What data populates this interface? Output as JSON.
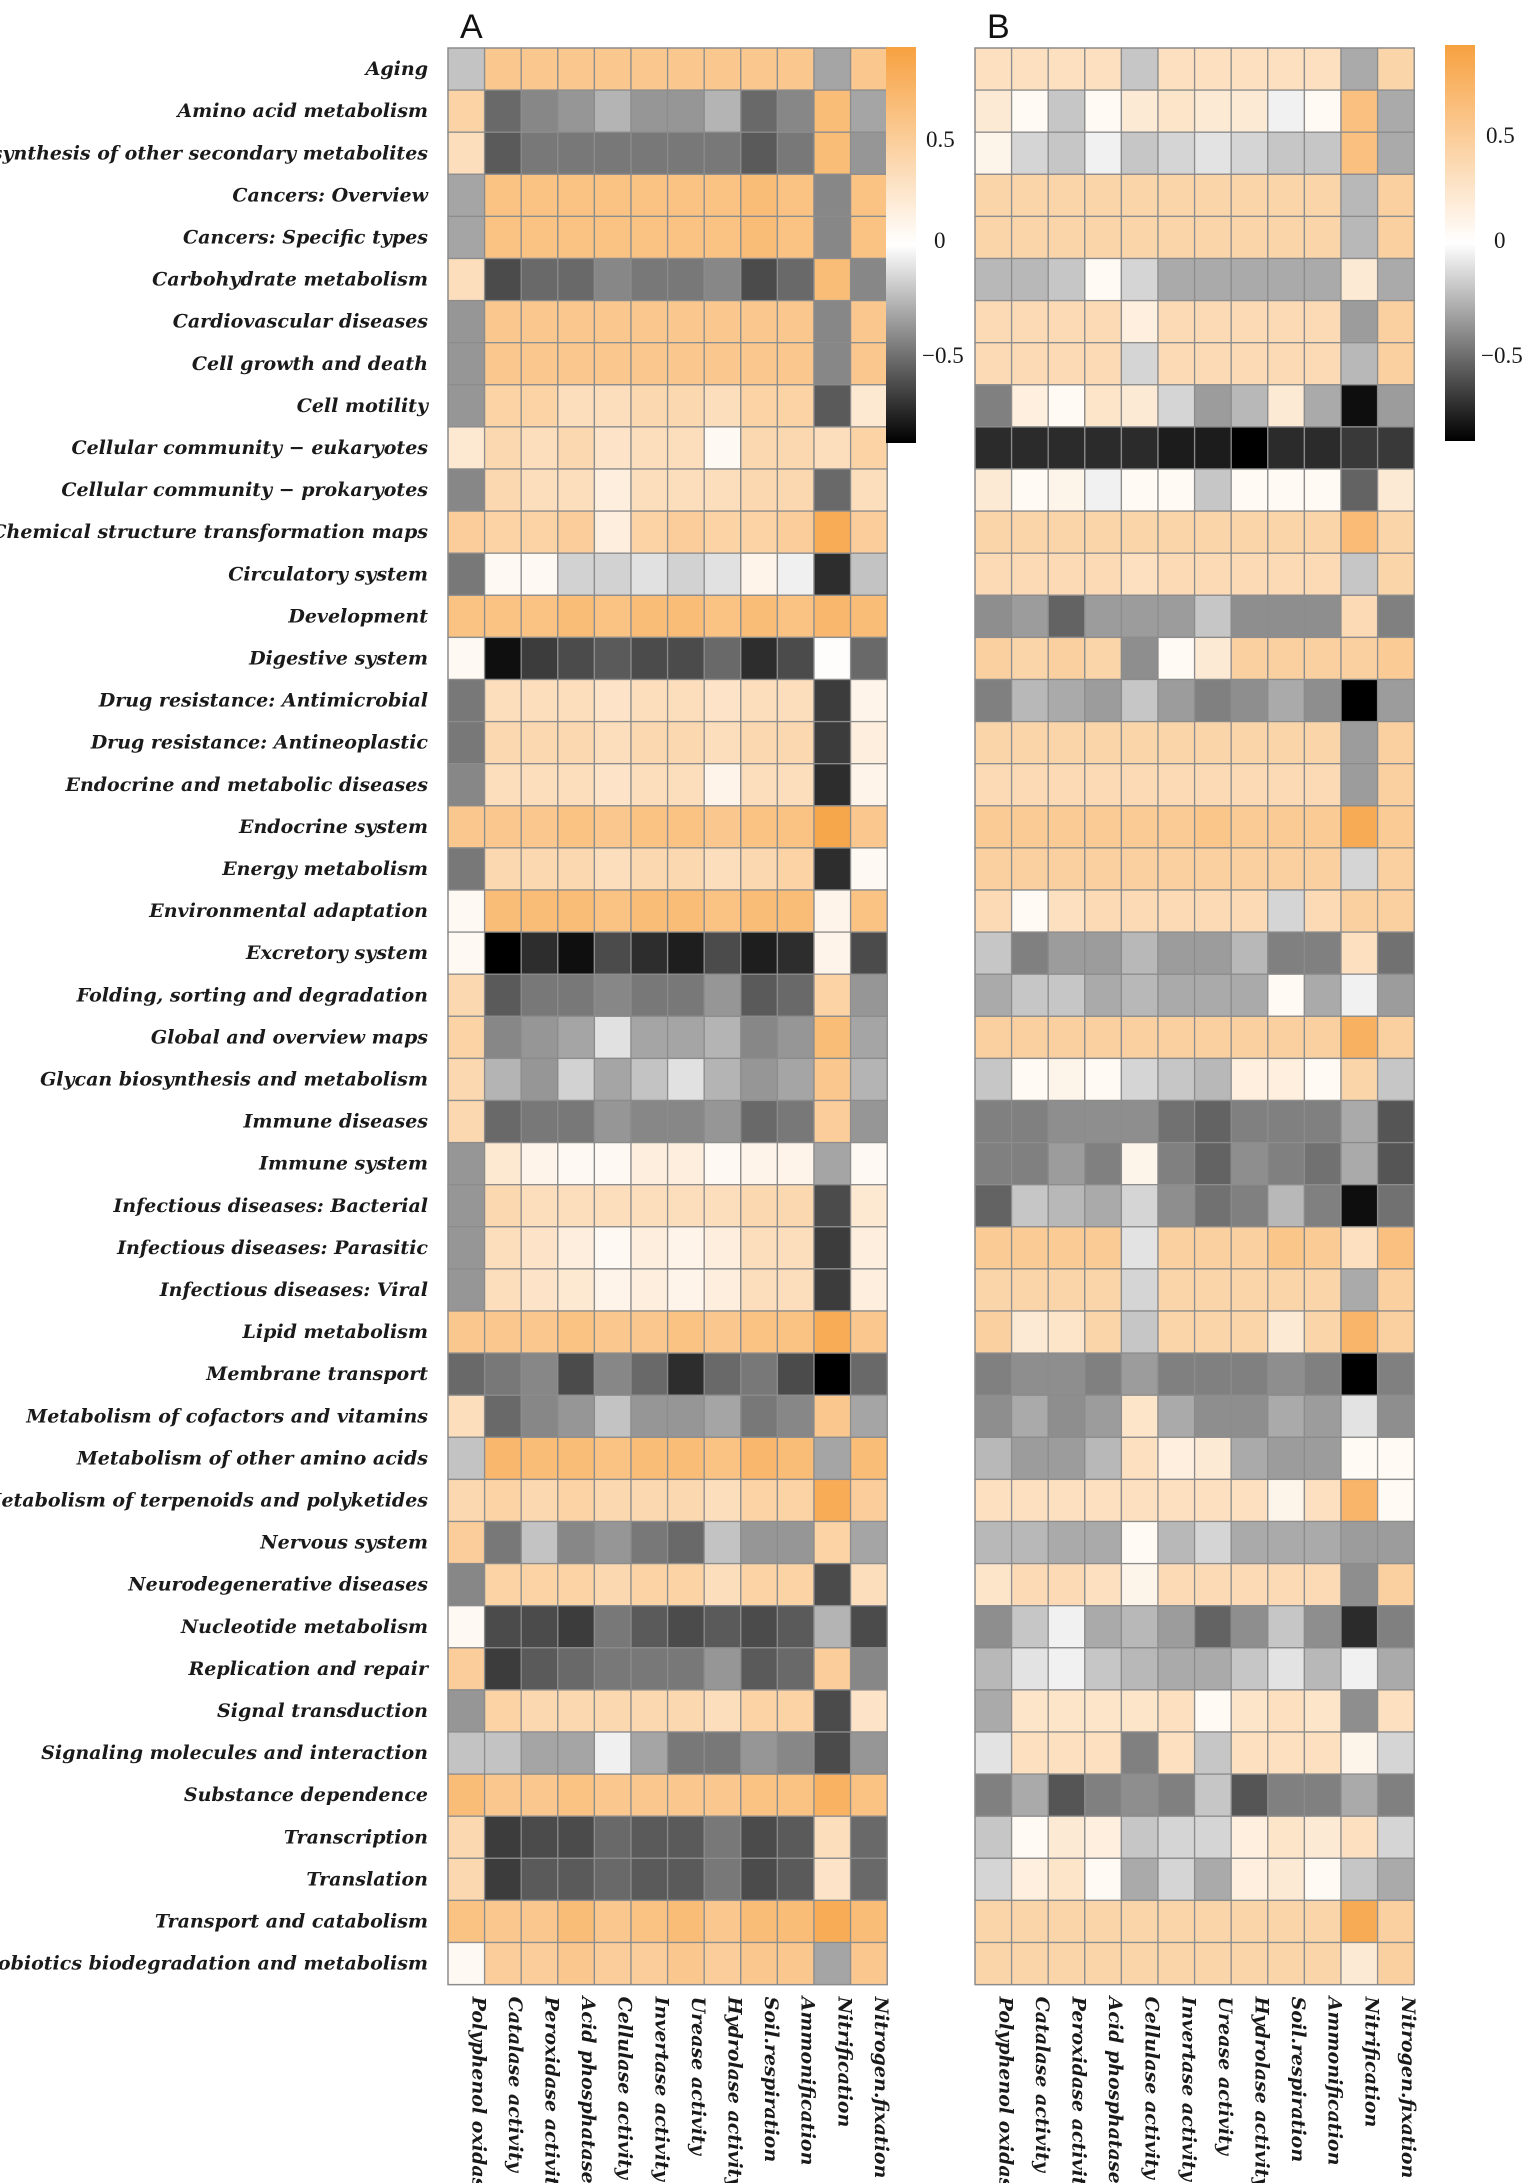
{
  "chart_data": {
    "type": "heatmap",
    "title": "",
    "panels": [
      "A",
      "B"
    ],
    "rows": [
      "Aging",
      "Amino acid metabolism",
      "Biosynthesis of other secondary metabolites",
      "Cancers: Overview",
      "Cancers: Specific types",
      "Carbohydrate metabolism",
      "Cardiovascular diseases",
      "Cell growth and death",
      "Cell motility",
      "Cellular community − eukaryotes",
      "Cellular community − prokaryotes",
      "Chemical structure transformation maps",
      "Circulatory system",
      "Development",
      "Digestive system",
      "Drug resistance: Antimicrobial",
      "Drug resistance: Antineoplastic",
      "Endocrine and metabolic diseases",
      "Endocrine system",
      "Energy metabolism",
      "Environmental adaptation",
      "Excretory system",
      "Folding, sorting and degradation",
      "Global and overview maps",
      "Glycan biosynthesis and metabolism",
      "Immune diseases",
      "Immune system",
      "Infectious diseases: Bacterial",
      "Infectious diseases: Parasitic",
      "Infectious diseases: Viral",
      "Lipid metabolism",
      "Membrane transport",
      "Metabolism of cofactors and vitamins",
      "Metabolism of other amino acids",
      "Metabolism of terpenoids and polyketides",
      "Nervous system",
      "Neurodegenerative diseases",
      "Nucleotide metabolism",
      "Replication and repair",
      "Signal transduction",
      "Signaling molecules and interaction",
      "Substance dependence",
      "Transcription",
      "Translation",
      "Transport and catabolism",
      "Xenobiotics biodegradation and metabolism"
    ],
    "columns_A": [
      "Polyphenol oxidase",
      "Catalase activity",
      "Peroxidase activity",
      "Acid phosphatase",
      "Cellulase activity",
      "Invertase activity",
      "Urease activity",
      "Hydrolase activity",
      "Soil.respiration",
      "Ammonification",
      "Nitrification",
      "Nitrogen.fixation"
    ],
    "columns_B": [
      "Polyphenol oxidas",
      "Catalase activity",
      "Peroxidase activity",
      "Acid phosphatase",
      "Cellulase activity",
      "Invertase activity",
      "Urease activity",
      "Hydrolase activity",
      "Soil.respiration",
      "Ammonification",
      "Nitrification",
      "Nitrogen.fixation"
    ],
    "colorbar_A": {
      "ticks": [
        0.5,
        0,
        -0.5
      ],
      "tick_labels": [
        "0.5",
        "0",
        "−0.5"
      ],
      "range": [
        -0.85,
        0.85
      ]
    },
    "colorbar_B": {
      "ticks": [
        0.5,
        0,
        -0.5
      ],
      "tick_labels": [
        "0.5",
        "0",
        "−0.5"
      ],
      "range": [
        -0.9,
        0.9
      ]
    },
    "colors": {
      "high": "#f7a140",
      "mid": "#ffffff",
      "low": "#000000"
    },
    "values_A": [
      [
        -0.2,
        0.5,
        0.5,
        0.5,
        0.5,
        0.5,
        0.5,
        0.5,
        0.5,
        0.5,
        -0.3,
        0.5
      ],
      [
        0.4,
        -0.5,
        -0.4,
        -0.35,
        -0.25,
        -0.35,
        -0.35,
        -0.25,
        -0.5,
        -0.4,
        0.6,
        -0.3
      ],
      [
        0.3,
        -0.55,
        -0.45,
        -0.45,
        -0.45,
        -0.45,
        -0.45,
        -0.45,
        -0.55,
        -0.45,
        0.6,
        -0.35
      ],
      [
        -0.3,
        0.55,
        0.55,
        0.55,
        0.55,
        0.55,
        0.55,
        0.55,
        0.6,
        0.55,
        -0.4,
        0.55
      ],
      [
        -0.3,
        0.55,
        0.55,
        0.55,
        0.55,
        0.55,
        0.55,
        0.55,
        0.6,
        0.55,
        -0.4,
        0.55
      ],
      [
        0.3,
        -0.6,
        -0.5,
        -0.5,
        -0.4,
        -0.45,
        -0.45,
        -0.4,
        -0.6,
        -0.5,
        0.6,
        -0.4
      ],
      [
        -0.35,
        0.5,
        0.5,
        0.5,
        0.5,
        0.5,
        0.5,
        0.5,
        0.5,
        0.5,
        -0.4,
        0.5
      ],
      [
        -0.35,
        0.5,
        0.5,
        0.5,
        0.5,
        0.5,
        0.5,
        0.5,
        0.5,
        0.5,
        -0.4,
        0.5
      ],
      [
        -0.35,
        0.4,
        0.4,
        0.3,
        0.3,
        0.35,
        0.35,
        0.3,
        0.4,
        0.4,
        -0.55,
        0.2
      ],
      [
        0.2,
        0.35,
        0.3,
        0.35,
        0.25,
        0.3,
        0.3,
        0.05,
        0.35,
        0.35,
        0.3,
        0.4
      ],
      [
        -0.4,
        0.35,
        0.3,
        0.3,
        0.15,
        0.3,
        0.3,
        0.3,
        0.35,
        0.35,
        -0.5,
        0.3
      ],
      [
        0.45,
        0.4,
        0.4,
        0.45,
        0.15,
        0.4,
        0.45,
        0.4,
        0.4,
        0.45,
        0.75,
        0.45
      ],
      [
        -0.45,
        0.05,
        0.05,
        -0.15,
        -0.15,
        -0.1,
        -0.15,
        -0.1,
        0.1,
        -0.05,
        -0.7,
        -0.2
      ],
      [
        0.55,
        0.55,
        0.55,
        0.6,
        0.55,
        0.6,
        0.6,
        0.55,
        0.6,
        0.55,
        0.65,
        0.6
      ],
      [
        0.05,
        -0.8,
        -0.65,
        -0.6,
        -0.55,
        -0.6,
        -0.6,
        -0.5,
        -0.7,
        -0.6,
        0.02,
        -0.5
      ],
      [
        -0.45,
        0.3,
        0.3,
        0.3,
        0.25,
        0.3,
        0.3,
        0.25,
        0.3,
        0.3,
        -0.65,
        0.1
      ],
      [
        -0.45,
        0.35,
        0.35,
        0.35,
        0.3,
        0.35,
        0.35,
        0.3,
        0.35,
        0.35,
        -0.65,
        0.15
      ],
      [
        -0.4,
        0.3,
        0.3,
        0.3,
        0.25,
        0.3,
        0.3,
        0.1,
        0.3,
        0.3,
        -0.7,
        0.1
      ],
      [
        0.5,
        0.5,
        0.5,
        0.55,
        0.5,
        0.55,
        0.55,
        0.5,
        0.55,
        0.55,
        0.8,
        0.5
      ],
      [
        -0.45,
        0.35,
        0.35,
        0.35,
        0.3,
        0.35,
        0.35,
        0.3,
        0.35,
        0.4,
        -0.7,
        0.05
      ],
      [
        0.05,
        0.6,
        0.6,
        0.6,
        0.55,
        0.6,
        0.6,
        0.55,
        0.6,
        0.6,
        0.1,
        0.55
      ],
      [
        0.05,
        -0.85,
        -0.7,
        -0.8,
        -0.6,
        -0.7,
        -0.75,
        -0.6,
        -0.75,
        -0.7,
        0.1,
        -0.6
      ],
      [
        0.35,
        -0.55,
        -0.45,
        -0.45,
        -0.4,
        -0.45,
        -0.45,
        -0.35,
        -0.55,
        -0.5,
        0.4,
        -0.35
      ],
      [
        0.4,
        -0.4,
        -0.35,
        -0.3,
        -0.1,
        -0.3,
        -0.3,
        -0.25,
        -0.4,
        -0.35,
        0.6,
        -0.3
      ],
      [
        0.35,
        -0.25,
        -0.35,
        -0.15,
        -0.3,
        -0.2,
        -0.1,
        -0.25,
        -0.35,
        -0.3,
        0.5,
        -0.25
      ],
      [
        0.35,
        -0.5,
        -0.45,
        -0.45,
        -0.35,
        -0.4,
        -0.4,
        -0.35,
        -0.5,
        -0.45,
        0.45,
        -0.35
      ],
      [
        -0.35,
        0.2,
        0.1,
        0.05,
        0.05,
        0.15,
        0.15,
        0.05,
        0.1,
        0.1,
        -0.3,
        0.05
      ],
      [
        -0.35,
        0.35,
        0.3,
        0.3,
        0.3,
        0.3,
        0.3,
        0.3,
        0.35,
        0.35,
        -0.6,
        0.2
      ],
      [
        -0.35,
        0.3,
        0.25,
        0.15,
        0.05,
        0.15,
        0.1,
        0.15,
        0.3,
        0.3,
        -0.65,
        0.15
      ],
      [
        -0.35,
        0.3,
        0.25,
        0.2,
        0.1,
        0.15,
        0.1,
        0.15,
        0.3,
        0.3,
        -0.65,
        0.15
      ],
      [
        0.5,
        0.5,
        0.5,
        0.55,
        0.5,
        0.5,
        0.55,
        0.5,
        0.55,
        0.55,
        0.75,
        0.5
      ],
      [
        -0.5,
        -0.45,
        -0.4,
        -0.6,
        -0.4,
        -0.5,
        -0.7,
        -0.5,
        -0.45,
        -0.6,
        -0.9,
        -0.5
      ],
      [
        0.3,
        -0.5,
        -0.4,
        -0.35,
        -0.2,
        -0.35,
        -0.35,
        -0.3,
        -0.45,
        -0.4,
        0.5,
        -0.3
      ],
      [
        -0.2,
        0.65,
        0.6,
        0.6,
        0.55,
        0.6,
        0.6,
        0.55,
        0.65,
        0.6,
        -0.3,
        0.6
      ],
      [
        0.35,
        0.4,
        0.35,
        0.4,
        0.35,
        0.35,
        0.35,
        0.3,
        0.4,
        0.4,
        0.75,
        0.45
      ],
      [
        0.45,
        -0.45,
        -0.2,
        -0.4,
        -0.35,
        -0.45,
        -0.5,
        -0.2,
        -0.35,
        -0.35,
        0.4,
        -0.3
      ],
      [
        -0.4,
        0.4,
        0.4,
        0.4,
        0.35,
        0.4,
        0.4,
        0.3,
        0.4,
        0.4,
        -0.6,
        0.3
      ],
      [
        0.05,
        -0.6,
        -0.6,
        -0.65,
        -0.45,
        -0.55,
        -0.6,
        -0.55,
        -0.6,
        -0.55,
        -0.25,
        -0.6
      ],
      [
        0.45,
        -0.65,
        -0.55,
        -0.5,
        -0.45,
        -0.45,
        -0.45,
        -0.35,
        -0.55,
        -0.5,
        0.45,
        -0.4
      ],
      [
        -0.35,
        0.4,
        0.35,
        0.35,
        0.35,
        0.35,
        0.35,
        0.3,
        0.4,
        0.4,
        -0.6,
        0.25
      ],
      [
        -0.2,
        -0.2,
        -0.3,
        -0.3,
        -0.05,
        -0.3,
        -0.45,
        -0.45,
        -0.35,
        -0.4,
        -0.6,
        -0.35
      ],
      [
        0.6,
        0.5,
        0.5,
        0.55,
        0.5,
        0.5,
        0.5,
        0.5,
        0.55,
        0.55,
        0.7,
        0.55
      ],
      [
        0.35,
        -0.65,
        -0.6,
        -0.6,
        -0.5,
        -0.55,
        -0.55,
        -0.45,
        -0.6,
        -0.55,
        0.3,
        -0.5
      ],
      [
        0.35,
        -0.65,
        -0.55,
        -0.55,
        -0.5,
        -0.55,
        -0.55,
        -0.45,
        -0.6,
        -0.55,
        0.25,
        -0.5
      ],
      [
        0.55,
        0.5,
        0.5,
        0.6,
        0.5,
        0.55,
        0.6,
        0.5,
        0.6,
        0.6,
        0.75,
        0.6
      ],
      [
        0.05,
        0.45,
        0.45,
        0.5,
        0.45,
        0.45,
        0.5,
        0.45,
        0.5,
        0.5,
        -0.3,
        0.5
      ]
    ],
    "values_B": [
      [
        0.3,
        0.3,
        0.3,
        0.3,
        -0.2,
        0.3,
        0.3,
        0.3,
        0.3,
        0.3,
        -0.3,
        0.4
      ],
      [
        0.2,
        0.05,
        -0.2,
        0.05,
        0.2,
        0.25,
        0.2,
        0.2,
        -0.05,
        0.05,
        0.6,
        -0.3
      ],
      [
        0.1,
        -0.15,
        -0.2,
        -0.05,
        -0.2,
        -0.15,
        -0.1,
        -0.15,
        -0.2,
        -0.2,
        0.6,
        -0.3
      ],
      [
        0.4,
        0.4,
        0.4,
        0.4,
        0.4,
        0.4,
        0.4,
        0.4,
        0.4,
        0.4,
        -0.25,
        0.45
      ],
      [
        0.4,
        0.4,
        0.4,
        0.4,
        0.4,
        0.4,
        0.4,
        0.4,
        0.4,
        0.4,
        -0.25,
        0.45
      ],
      [
        -0.25,
        -0.25,
        -0.2,
        0.05,
        -0.15,
        -0.3,
        -0.3,
        -0.3,
        -0.3,
        -0.3,
        0.2,
        -0.3
      ],
      [
        0.35,
        0.35,
        0.35,
        0.35,
        0.15,
        0.35,
        0.35,
        0.35,
        0.35,
        0.35,
        -0.35,
        0.45
      ],
      [
        0.35,
        0.35,
        0.35,
        0.35,
        -0.15,
        0.35,
        0.35,
        0.35,
        0.35,
        0.35,
        -0.25,
        0.45
      ],
      [
        -0.45,
        0.15,
        0.05,
        0.25,
        0.2,
        -0.15,
        -0.35,
        -0.25,
        0.2,
        -0.3,
        -0.85,
        -0.35
      ],
      [
        -0.75,
        -0.75,
        -0.75,
        -0.75,
        -0.75,
        -0.8,
        -0.8,
        -0.9,
        -0.75,
        -0.75,
        -0.7,
        -0.7
      ],
      [
        0.2,
        0.05,
        0.1,
        -0.05,
        0.05,
        0.05,
        -0.2,
        0.05,
        0.05,
        0.05,
        -0.55,
        0.2
      ],
      [
        0.4,
        0.4,
        0.4,
        0.4,
        0.4,
        0.4,
        0.4,
        0.4,
        0.4,
        0.4,
        0.65,
        0.4
      ],
      [
        0.35,
        0.35,
        0.35,
        0.35,
        0.3,
        0.35,
        0.35,
        0.35,
        0.35,
        0.35,
        -0.2,
        0.4
      ],
      [
        -0.4,
        -0.35,
        -0.55,
        -0.35,
        -0.35,
        -0.35,
        -0.2,
        -0.4,
        -0.4,
        -0.4,
        0.35,
        -0.45
      ],
      [
        0.45,
        0.4,
        0.45,
        0.4,
        -0.4,
        0.05,
        0.2,
        0.45,
        0.45,
        0.45,
        0.45,
        0.5
      ],
      [
        -0.45,
        -0.25,
        -0.3,
        -0.35,
        -0.2,
        -0.35,
        -0.45,
        -0.4,
        -0.3,
        -0.4,
        -0.9,
        -0.35
      ],
      [
        0.4,
        0.4,
        0.4,
        0.4,
        0.4,
        0.4,
        0.4,
        0.4,
        0.4,
        0.4,
        -0.35,
        0.45
      ],
      [
        0.35,
        0.35,
        0.35,
        0.35,
        0.35,
        0.35,
        0.35,
        0.35,
        0.35,
        0.35,
        -0.35,
        0.45
      ],
      [
        0.5,
        0.5,
        0.5,
        0.5,
        0.5,
        0.5,
        0.55,
        0.5,
        0.5,
        0.5,
        0.8,
        0.5
      ],
      [
        0.45,
        0.45,
        0.45,
        0.45,
        0.45,
        0.45,
        0.45,
        0.45,
        0.45,
        0.45,
        -0.15,
        0.45
      ],
      [
        0.35,
        0.05,
        0.3,
        0.35,
        0.35,
        0.35,
        0.35,
        0.35,
        -0.15,
        0.35,
        0.45,
        0.45
      ],
      [
        -0.2,
        -0.45,
        -0.35,
        -0.35,
        -0.25,
        -0.35,
        -0.35,
        -0.25,
        -0.45,
        -0.45,
        0.3,
        -0.5
      ],
      [
        -0.3,
        -0.2,
        -0.2,
        -0.3,
        -0.25,
        -0.3,
        -0.3,
        -0.3,
        0.05,
        -0.3,
        -0.05,
        -0.35
      ],
      [
        0.45,
        0.45,
        0.45,
        0.45,
        0.45,
        0.45,
        0.45,
        0.45,
        0.45,
        0.45,
        0.75,
        0.45
      ],
      [
        -0.2,
        0.05,
        0.1,
        0.05,
        -0.15,
        -0.2,
        -0.25,
        0.15,
        0.15,
        0.05,
        0.4,
        -0.2
      ],
      [
        -0.45,
        -0.45,
        -0.4,
        -0.4,
        -0.4,
        -0.5,
        -0.55,
        -0.45,
        -0.45,
        -0.45,
        -0.3,
        -0.6
      ],
      [
        -0.45,
        -0.45,
        -0.35,
        -0.45,
        0.1,
        -0.45,
        -0.55,
        -0.4,
        -0.45,
        -0.5,
        -0.3,
        -0.6
      ],
      [
        -0.55,
        -0.2,
        -0.25,
        -0.3,
        -0.15,
        -0.4,
        -0.5,
        -0.45,
        -0.25,
        -0.45,
        -0.85,
        -0.5
      ],
      [
        0.5,
        0.5,
        0.5,
        0.5,
        -0.1,
        0.45,
        0.45,
        0.45,
        0.55,
        0.5,
        0.3,
        0.6
      ],
      [
        0.4,
        0.4,
        0.4,
        0.4,
        -0.15,
        0.4,
        0.4,
        0.4,
        0.4,
        0.4,
        -0.3,
        0.45
      ],
      [
        0.45,
        0.2,
        0.25,
        0.4,
        -0.2,
        0.4,
        0.4,
        0.4,
        0.2,
        0.4,
        0.7,
        0.45
      ],
      [
        -0.45,
        -0.4,
        -0.4,
        -0.45,
        -0.35,
        -0.45,
        -0.45,
        -0.45,
        -0.4,
        -0.45,
        -0.9,
        -0.45
      ],
      [
        -0.4,
        -0.3,
        -0.4,
        -0.35,
        0.25,
        -0.3,
        -0.4,
        -0.4,
        -0.3,
        -0.35,
        -0.1,
        -0.4
      ],
      [
        -0.25,
        -0.35,
        -0.35,
        -0.25,
        0.3,
        0.15,
        0.2,
        -0.3,
        -0.35,
        -0.35,
        0.05,
        0.05
      ],
      [
        0.3,
        0.3,
        0.3,
        0.3,
        0.3,
        0.3,
        0.3,
        0.3,
        0.1,
        0.3,
        0.7,
        0.05
      ],
      [
        -0.25,
        -0.25,
        -0.3,
        -0.3,
        0.05,
        -0.25,
        -0.15,
        -0.3,
        -0.3,
        -0.3,
        -0.35,
        -0.35
      ],
      [
        0.25,
        0.35,
        0.35,
        0.3,
        0.1,
        0.35,
        0.35,
        0.35,
        0.35,
        0.35,
        -0.4,
        0.45
      ],
      [
        -0.4,
        -0.2,
        -0.05,
        -0.3,
        -0.25,
        -0.35,
        -0.55,
        -0.4,
        -0.2,
        -0.4,
        -0.75,
        -0.45
      ],
      [
        -0.25,
        -0.1,
        -0.05,
        -0.2,
        -0.25,
        -0.3,
        -0.3,
        -0.2,
        -0.1,
        -0.25,
        -0.05,
        -0.3
      ],
      [
        -0.3,
        0.25,
        0.25,
        0.25,
        0.25,
        0.3,
        0.05,
        0.25,
        0.3,
        0.25,
        -0.4,
        0.3
      ],
      [
        -0.1,
        0.3,
        0.3,
        0.3,
        -0.45,
        0.3,
        -0.2,
        0.3,
        0.3,
        0.3,
        0.1,
        -0.15
      ],
      [
        -0.45,
        -0.3,
        -0.6,
        -0.45,
        -0.4,
        -0.45,
        -0.2,
        -0.6,
        -0.45,
        -0.45,
        -0.3,
        -0.45
      ],
      [
        -0.2,
        0.05,
        0.2,
        0.15,
        -0.2,
        -0.15,
        -0.15,
        0.15,
        0.25,
        0.2,
        0.3,
        -0.15
      ],
      [
        -0.15,
        0.15,
        0.25,
        0.05,
        -0.3,
        -0.15,
        -0.3,
        0.15,
        0.2,
        0.05,
        -0.2,
        -0.3
      ],
      [
        0.4,
        0.4,
        0.4,
        0.4,
        0.4,
        0.4,
        0.4,
        0.4,
        0.4,
        0.4,
        0.8,
        0.45
      ],
      [
        0.4,
        0.4,
        0.4,
        0.4,
        0.4,
        0.4,
        0.4,
        0.4,
        0.4,
        0.4,
        0.2,
        0.45
      ]
    ]
  }
}
